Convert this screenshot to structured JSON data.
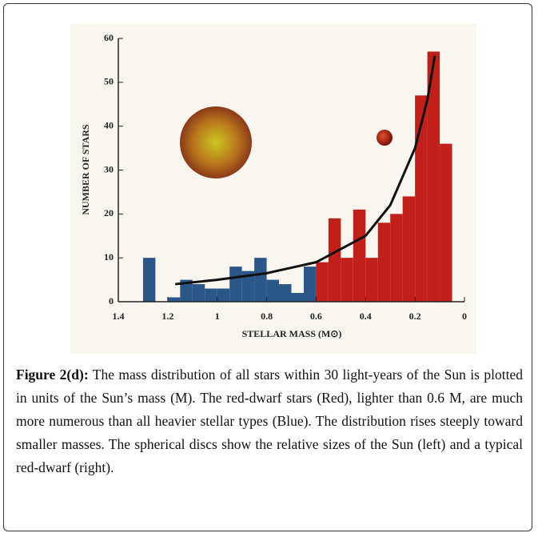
{
  "chart_data": {
    "type": "histogram",
    "xlabel": "STELLAR MASS (M⊙)",
    "ylabel": "NUMBER OF STARS",
    "bins": [
      1.3,
      1.25,
      1.2,
      1.15,
      1.1,
      1.05,
      1,
      0.95,
      0.9,
      0.85,
      0.8,
      0.75,
      0.7,
      0.65,
      0.6,
      0.55,
      0.5,
      0.45,
      0.4,
      0.35,
      0.3,
      0.25,
      0.2,
      0.15,
      0.1,
      0.05
    ],
    "series": [
      {
        "color": "#2b5688",
        "values": [
          10,
          0,
          1,
          5,
          4,
          3,
          3,
          8,
          7,
          10,
          5,
          4,
          2,
          8,
          null,
          null,
          null,
          null,
          null,
          null,
          null,
          null,
          null,
          null,
          null
        ]
      },
      {
        "color": "#c21f1a",
        "values": [
          null,
          null,
          null,
          null,
          null,
          null,
          null,
          null,
          null,
          null,
          null,
          null,
          null,
          null,
          9,
          19,
          10,
          21,
          10,
          18,
          20,
          24,
          47,
          57,
          36
        ]
      }
    ],
    "fit": {
      "color": "#111111",
      "x": [
        1.17,
        1,
        0.8,
        0.6,
        0.4,
        0.3,
        0.2,
        0.15,
        0.12
      ],
      "values": [
        4,
        5,
        6.5,
        9,
        15,
        22,
        35,
        46,
        56
      ]
    },
    "xlim": [
      1.4,
      0
    ],
    "ylim": [
      0,
      60
    ],
    "xticks": [
      1.4,
      1.2,
      1,
      0.8,
      0.6,
      0.4,
      0.2,
      0
    ],
    "yticks": [
      0,
      10,
      20,
      30,
      40,
      50,
      60
    ]
  },
  "caption": {
    "label": "Figure 2(d):",
    "text": "The mass distribution of all stars within 30 light-years of the Sun is plotted in units of the Sun’s mass (M). The red-dwarf stars (Red), lighter than 0.6 M, are much more numerous than all heavier stellar types (Blue). The distribution rises steeply toward smaller masses. The spherical discs show the relative sizes of the Sun (left) and a typical red-dwarf (right)."
  }
}
